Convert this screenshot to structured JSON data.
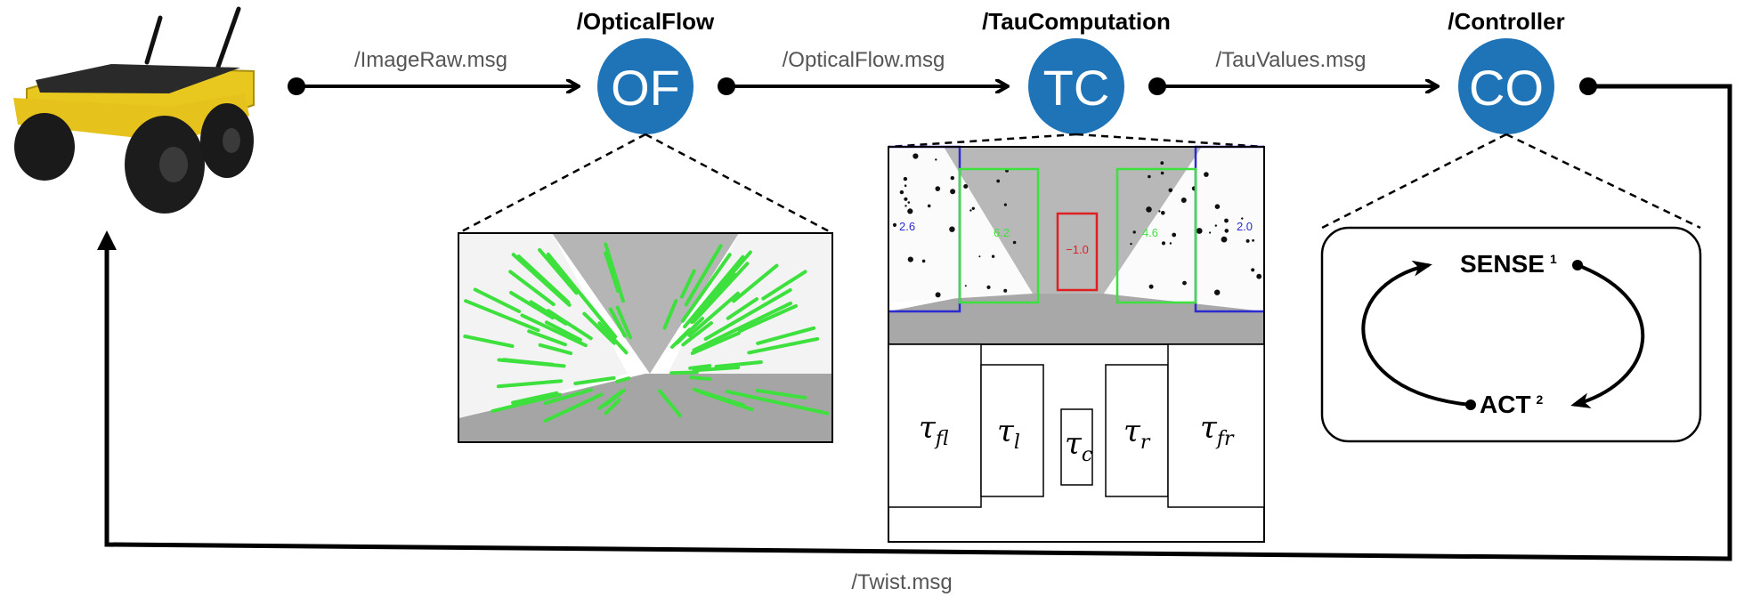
{
  "nodes": [
    {
      "abbr": "OF",
      "title": "/OpticalFlow"
    },
    {
      "abbr": "TC",
      "title": "/TauComputation"
    },
    {
      "abbr": "CO",
      "title": "/Controller"
    }
  ],
  "messages": {
    "image_raw": "/ImageRaw.msg",
    "optical_flow": "/OpticalFlow.msg",
    "tau_values": "/TauValues.msg",
    "twist": "/Twist.msg"
  },
  "tau_regions": {
    "values": {
      "far_left": "2.6",
      "left": "6.2",
      "center": "−1.0",
      "right": "4.6",
      "far_right": "2.0"
    },
    "labels": {
      "far_left": "τ",
      "far_left_sub": "fl",
      "left": "τ",
      "left_sub": "l",
      "center": "τ",
      "center_sub": "c",
      "right": "τ",
      "right_sub": "r",
      "far_right": "τ",
      "far_right_sub": "fr"
    }
  },
  "controller_loop": {
    "sense": "SENSE",
    "sense_index": "1",
    "act": "ACT",
    "act_index": "2"
  },
  "colors": {
    "node_fill": "#1f74b8",
    "flow_vectors": "#3ee03e",
    "roi_side": "#2b2bd0",
    "roi_mid": "#3ee03e",
    "roi_center": "#e02020"
  }
}
